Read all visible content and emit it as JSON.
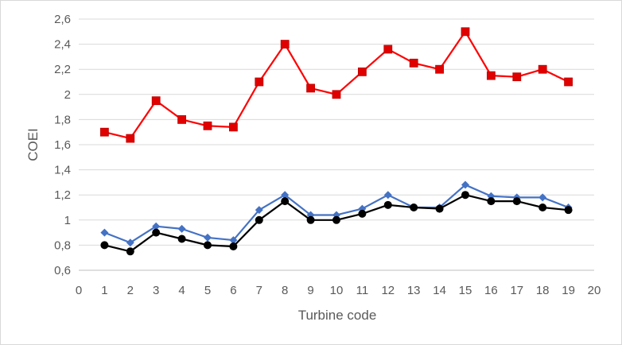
{
  "chart_data": {
    "type": "line",
    "xlabel": "Turbine code",
    "ylabel": "COEI",
    "xlim": [
      0,
      20
    ],
    "ylim": [
      0.6,
      2.6
    ],
    "x_ticks": [
      "0",
      "1",
      "2",
      "3",
      "4",
      "5",
      "6",
      "7",
      "8",
      "9",
      "10",
      "11",
      "12",
      "13",
      "14",
      "15",
      "16",
      "17",
      "18",
      "19",
      "20"
    ],
    "y_ticks": [
      "0,6",
      "0,8",
      "1",
      "1,2",
      "1,4",
      "1,6",
      "1,8",
      "2",
      "2,2",
      "2,4",
      "2,6"
    ],
    "x": [
      1,
      2,
      3,
      4,
      5,
      6,
      7,
      8,
      9,
      10,
      11,
      12,
      13,
      14,
      15,
      16,
      17,
      18,
      19
    ],
    "grid": "horizontal",
    "legend": "none",
    "series": [
      {
        "marker": "square",
        "color": "#ff0000",
        "marker_color": "#e00000",
        "values": [
          1.7,
          1.65,
          1.95,
          1.8,
          1.75,
          1.74,
          2.1,
          2.4,
          2.05,
          2.0,
          2.18,
          2.36,
          2.25,
          2.2,
          2.5,
          2.15,
          2.14,
          2.2,
          2.1
        ]
      },
      {
        "marker": "diamond",
        "color": "#4472c4",
        "marker_color": "#4472c4",
        "values": [
          0.9,
          0.82,
          0.95,
          0.93,
          0.86,
          0.84,
          1.08,
          1.2,
          1.04,
          1.04,
          1.09,
          1.2,
          1.1,
          1.1,
          1.28,
          1.19,
          1.18,
          1.18,
          1.1
        ]
      },
      {
        "marker": "circle",
        "color": "#000000",
        "marker_color": "#000000",
        "values": [
          0.8,
          0.75,
          0.9,
          0.85,
          0.8,
          0.79,
          1.0,
          1.15,
          1.0,
          1.0,
          1.05,
          1.12,
          1.1,
          1.09,
          1.2,
          1.15,
          1.15,
          1.1,
          1.08
        ]
      }
    ],
    "gridline_color": "#d9d9d9",
    "axis_color": "#bfbfbf"
  }
}
